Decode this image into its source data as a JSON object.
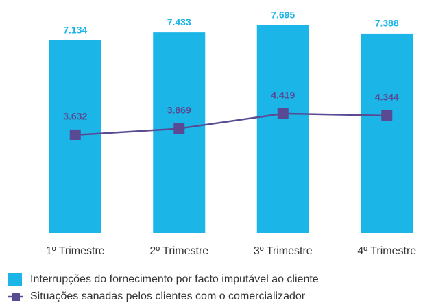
{
  "chart_data": {
    "type": "bar",
    "categories": [
      "1º Trimestre",
      "2º Trimestre",
      "3º Trimestre",
      "4º Trimestre"
    ],
    "series": [
      {
        "name": "Interrupções do fornecimento por facto imputável ao cliente",
        "type": "bar",
        "color": "#1bb5e8",
        "values": [
          7134,
          7433,
          7695,
          7388
        ],
        "value_labels": [
          "7.134",
          "7.433",
          "7.695",
          "7.388"
        ]
      },
      {
        "name": "Situações sanadas pelos clientes com o comercializador",
        "type": "line",
        "color": "#5a4a94",
        "values": [
          3632,
          3869,
          4419,
          4344
        ],
        "value_labels": [
          "3.632",
          "3.869",
          "4.419",
          "4.344"
        ]
      }
    ],
    "legend": "bottom"
  }
}
